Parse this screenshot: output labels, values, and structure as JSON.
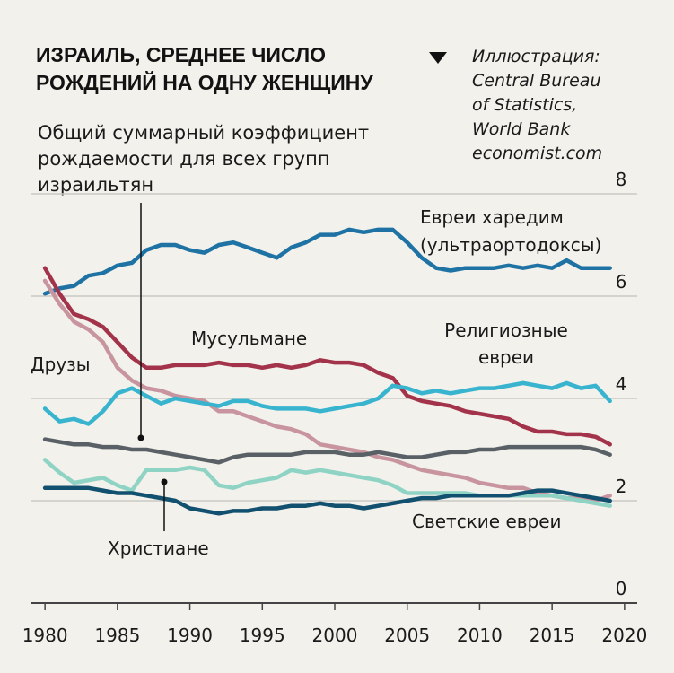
{
  "header": {
    "title_line1": "ИЗРАИЛЬ, СРЕДНЕЕ ЧИСЛО",
    "title_line2": "РОЖДЕНИЙ НА ОДНУ ЖЕНЩИНУ",
    "subtitle": "Общий суммарный коэффициент рождаемости для всех групп израильтян",
    "source": "Иллюстрация:\nCentral Bureau\nof Statistics,\nWorld Bank\neconomist.com"
  },
  "chart_data": {
    "type": "line",
    "title": "ИЗРАИЛЬ, СРЕДНЕЕ ЧИСЛО РОЖДЕНИЙ НА ОДНУ ЖЕНЩИНУ",
    "subtitle": "Общий суммарный коэффициент рождаемости для всех групп израильтян",
    "xlim": [
      1979,
      2021
    ],
    "ylim": [
      0,
      8
    ],
    "x_ticks": [
      1980,
      1985,
      1990,
      1995,
      2000,
      2005,
      2010,
      2015,
      2020
    ],
    "y_ticks": [
      0,
      2,
      4,
      6,
      8
    ],
    "grid": "horizontal",
    "label_lines": {
      "haredi": [
        "Евреи харедим",
        "(ультраортодоксы)"
      ],
      "muslim": [
        "Мусульмане"
      ],
      "religious": [
        "Религиозные",
        "евреи"
      ],
      "druze": [
        "Друзы"
      ],
      "christian": [
        "Христиане"
      ],
      "secular": [
        "Светские евреи"
      ]
    },
    "series": [
      {
        "key": "haredi",
        "name": "Евреи харедим (ультраортодоксы)",
        "color": "#1e73a4",
        "x": [
          1980,
          1981,
          1982,
          1983,
          1984,
          1985,
          1986,
          1987,
          1988,
          1989,
          1990,
          1991,
          1992,
          1993,
          1994,
          1995,
          1996,
          1997,
          1998,
          1999,
          2000,
          2001,
          2002,
          2003,
          2004,
          2005,
          2006,
          2007,
          2008,
          2009,
          2010,
          2011,
          2012,
          2013,
          2014,
          2015,
          2016,
          2017,
          2018,
          2019
        ],
        "y": [
          6.05,
          6.15,
          6.2,
          6.4,
          6.45,
          6.6,
          6.65,
          6.9,
          7.0,
          7.0,
          6.9,
          6.85,
          7.0,
          7.05,
          6.95,
          6.85,
          6.75,
          6.95,
          7.05,
          7.2,
          7.2,
          7.3,
          7.25,
          7.3,
          7.3,
          7.05,
          6.75,
          6.55,
          6.5,
          6.55,
          6.55,
          6.55,
          6.6,
          6.55,
          6.6,
          6.55,
          6.7,
          6.55,
          6.55,
          6.55
        ]
      },
      {
        "key": "muslim",
        "name": "Мусульмане",
        "color": "#a3334a",
        "x": [
          1980,
          1981,
          1982,
          1983,
          1984,
          1985,
          1986,
          1987,
          1988,
          1989,
          1990,
          1991,
          1992,
          1993,
          1994,
          1995,
          1996,
          1997,
          1998,
          1999,
          2000,
          2001,
          2002,
          2003,
          2004,
          2005,
          2006,
          2007,
          2008,
          2009,
          2010,
          2011,
          2012,
          2013,
          2014,
          2015,
          2016,
          2017,
          2018,
          2019
        ],
        "y": [
          6.55,
          6.05,
          5.65,
          5.55,
          5.4,
          5.1,
          4.8,
          4.6,
          4.6,
          4.65,
          4.65,
          4.65,
          4.7,
          4.65,
          4.65,
          4.6,
          4.65,
          4.6,
          4.65,
          4.75,
          4.7,
          4.7,
          4.65,
          4.5,
          4.4,
          4.05,
          3.95,
          3.9,
          3.85,
          3.75,
          3.7,
          3.65,
          3.6,
          3.45,
          3.35,
          3.35,
          3.3,
          3.3,
          3.25,
          3.1
        ]
      },
      {
        "key": "druze",
        "name": "Друзы",
        "color": "#c8959e",
        "x": [
          1980,
          1981,
          1982,
          1983,
          1984,
          1985,
          1986,
          1987,
          1988,
          1989,
          1990,
          1991,
          1992,
          1993,
          1994,
          1995,
          1996,
          1997,
          1998,
          1999,
          2000,
          2001,
          2002,
          2003,
          2004,
          2005,
          2006,
          2007,
          2008,
          2009,
          2010,
          2011,
          2012,
          2013,
          2014,
          2015,
          2016,
          2017,
          2018,
          2019
        ],
        "y": [
          6.3,
          5.85,
          5.5,
          5.35,
          5.1,
          4.6,
          4.35,
          4.2,
          4.15,
          4.05,
          4.0,
          3.95,
          3.75,
          3.75,
          3.65,
          3.55,
          3.45,
          3.4,
          3.3,
          3.1,
          3.05,
          3.0,
          2.95,
          2.85,
          2.8,
          2.7,
          2.6,
          2.55,
          2.5,
          2.45,
          2.35,
          2.3,
          2.25,
          2.25,
          2.15,
          2.1,
          2.05,
          2.05,
          2.0,
          2.1
        ]
      },
      {
        "key": "religious",
        "name": "Религиозные евреи",
        "color": "#38b4cf",
        "x": [
          1980,
          1981,
          1982,
          1983,
          1984,
          1985,
          1986,
          1987,
          1988,
          1989,
          1990,
          1991,
          1992,
          1993,
          1994,
          1995,
          1996,
          1997,
          1998,
          1999,
          2000,
          2001,
          2002,
          2003,
          2004,
          2005,
          2006,
          2007,
          2008,
          2009,
          2010,
          2011,
          2012,
          2013,
          2014,
          2015,
          2016,
          2017,
          2018,
          2019
        ],
        "y": [
          3.8,
          3.55,
          3.6,
          3.5,
          3.75,
          4.1,
          4.2,
          4.05,
          3.9,
          4.0,
          3.95,
          3.9,
          3.85,
          3.95,
          3.95,
          3.85,
          3.8,
          3.8,
          3.8,
          3.75,
          3.8,
          3.85,
          3.9,
          4.0,
          4.25,
          4.2,
          4.1,
          4.15,
          4.1,
          4.15,
          4.2,
          4.2,
          4.25,
          4.3,
          4.25,
          4.2,
          4.3,
          4.2,
          4.25,
          3.95
        ]
      },
      {
        "key": "total",
        "name": "Общий суммарный коэффициент рождаемости для всех групп израильтян",
        "color": "#5a6166",
        "x": [
          1980,
          1981,
          1982,
          1983,
          1984,
          1985,
          1986,
          1987,
          1988,
          1989,
          1990,
          1991,
          1992,
          1993,
          1994,
          1995,
          1996,
          1997,
          1998,
          1999,
          2000,
          2001,
          2002,
          2003,
          2004,
          2005,
          2006,
          2007,
          2008,
          2009,
          2010,
          2011,
          2012,
          2013,
          2014,
          2015,
          2016,
          2017,
          2018,
          2019
        ],
        "y": [
          3.2,
          3.15,
          3.1,
          3.1,
          3.05,
          3.05,
          3.0,
          3.0,
          2.95,
          2.9,
          2.85,
          2.8,
          2.75,
          2.85,
          2.9,
          2.9,
          2.9,
          2.9,
          2.95,
          2.95,
          2.95,
          2.9,
          2.9,
          2.95,
          2.9,
          2.85,
          2.85,
          2.9,
          2.95,
          2.95,
          3.0,
          3.0,
          3.05,
          3.05,
          3.05,
          3.05,
          3.05,
          3.05,
          3.0,
          2.9
        ]
      },
      {
        "key": "christian",
        "name": "Христиане",
        "color": "#8fd3c4",
        "x": [
          1980,
          1981,
          1982,
          1983,
          1984,
          1985,
          1986,
          1987,
          1988,
          1989,
          1990,
          1991,
          1992,
          1993,
          1994,
          1995,
          1996,
          1997,
          1998,
          1999,
          2000,
          2001,
          2002,
          2003,
          2004,
          2005,
          2006,
          2007,
          2008,
          2009,
          2010,
          2011,
          2012,
          2013,
          2014,
          2015,
          2016,
          2017,
          2018,
          2019
        ],
        "y": [
          2.8,
          2.55,
          2.35,
          2.4,
          2.45,
          2.3,
          2.2,
          2.6,
          2.6,
          2.6,
          2.65,
          2.6,
          2.3,
          2.25,
          2.35,
          2.4,
          2.45,
          2.6,
          2.55,
          2.6,
          2.55,
          2.5,
          2.45,
          2.4,
          2.3,
          2.15,
          2.15,
          2.15,
          2.15,
          2.15,
          2.1,
          2.1,
          2.1,
          2.1,
          2.1,
          2.1,
          2.05,
          2.0,
          1.95,
          1.9
        ]
      },
      {
        "key": "secular",
        "name": "Светские евреи",
        "color": "#11506f",
        "x": [
          1980,
          1981,
          1982,
          1983,
          1984,
          1985,
          1986,
          1987,
          1988,
          1989,
          1990,
          1991,
          1992,
          1993,
          1994,
          1995,
          1996,
          1997,
          1998,
          1999,
          2000,
          2001,
          2002,
          2003,
          2004,
          2005,
          2006,
          2007,
          2008,
          2009,
          2010,
          2011,
          2012,
          2013,
          2014,
          2015,
          2016,
          2017,
          2018,
          2019
        ],
        "y": [
          2.25,
          2.25,
          2.25,
          2.25,
          2.2,
          2.15,
          2.15,
          2.1,
          2.05,
          2.0,
          1.85,
          1.8,
          1.75,
          1.8,
          1.8,
          1.85,
          1.85,
          1.9,
          1.9,
          1.95,
          1.9,
          1.9,
          1.85,
          1.9,
          1.95,
          2.0,
          2.05,
          2.05,
          2.1,
          2.1,
          2.1,
          2.1,
          2.1,
          2.15,
          2.2,
          2.2,
          2.15,
          2.1,
          2.05,
          2.0
        ]
      }
    ]
  }
}
